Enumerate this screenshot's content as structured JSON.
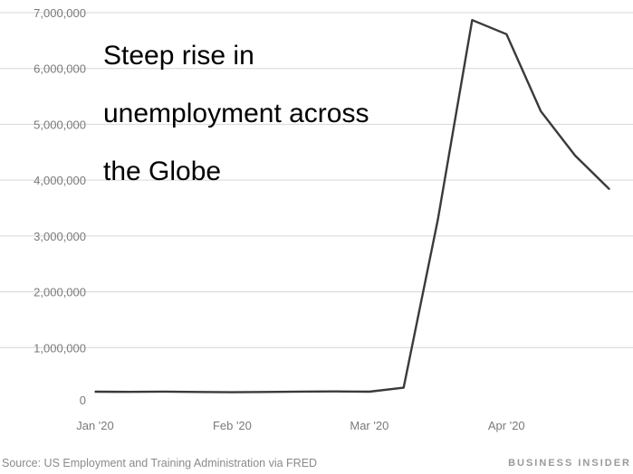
{
  "chart_data": {
    "type": "line",
    "title": "",
    "xlabel": "",
    "ylabel": "",
    "ylim": [
      0,
      7000000
    ],
    "y_ticks": [
      "0",
      "1,000,000",
      "2,000,000",
      "3,000,000",
      "4,000,000",
      "5,000,000",
      "6,000,000",
      "7,000,000"
    ],
    "y_tick_values": [
      0,
      1000000,
      2000000,
      3000000,
      4000000,
      5000000,
      6000000,
      7000000
    ],
    "x_ticks": [
      "Jan '20",
      "Feb '20",
      "Mar '20",
      "Apr '20"
    ],
    "x_tick_positions": [
      0,
      4,
      8,
      12
    ],
    "grid": true,
    "series": [
      {
        "values": [
          [
            0,
            210000
          ],
          [
            1,
            207000
          ],
          [
            2,
            212000
          ],
          [
            3,
            206000
          ],
          [
            4,
            201000
          ],
          [
            5,
            205000
          ],
          [
            6,
            212000
          ],
          [
            7,
            215000
          ],
          [
            8,
            211000
          ],
          [
            9,
            282000
          ],
          [
            10,
            3300000
          ],
          [
            11,
            6867000
          ],
          [
            12,
            6615000
          ],
          [
            13,
            5237000
          ],
          [
            14,
            4442000
          ],
          [
            15,
            3839000
          ]
        ]
      }
    ]
  },
  "annotation": {
    "lines": [
      "Steep rise in",
      "unemployment across",
      "the Globe"
    ]
  },
  "footer": {
    "source": "Source: US Employment and Training Administration via FRED",
    "brand": "BUSINESS INSIDER"
  }
}
